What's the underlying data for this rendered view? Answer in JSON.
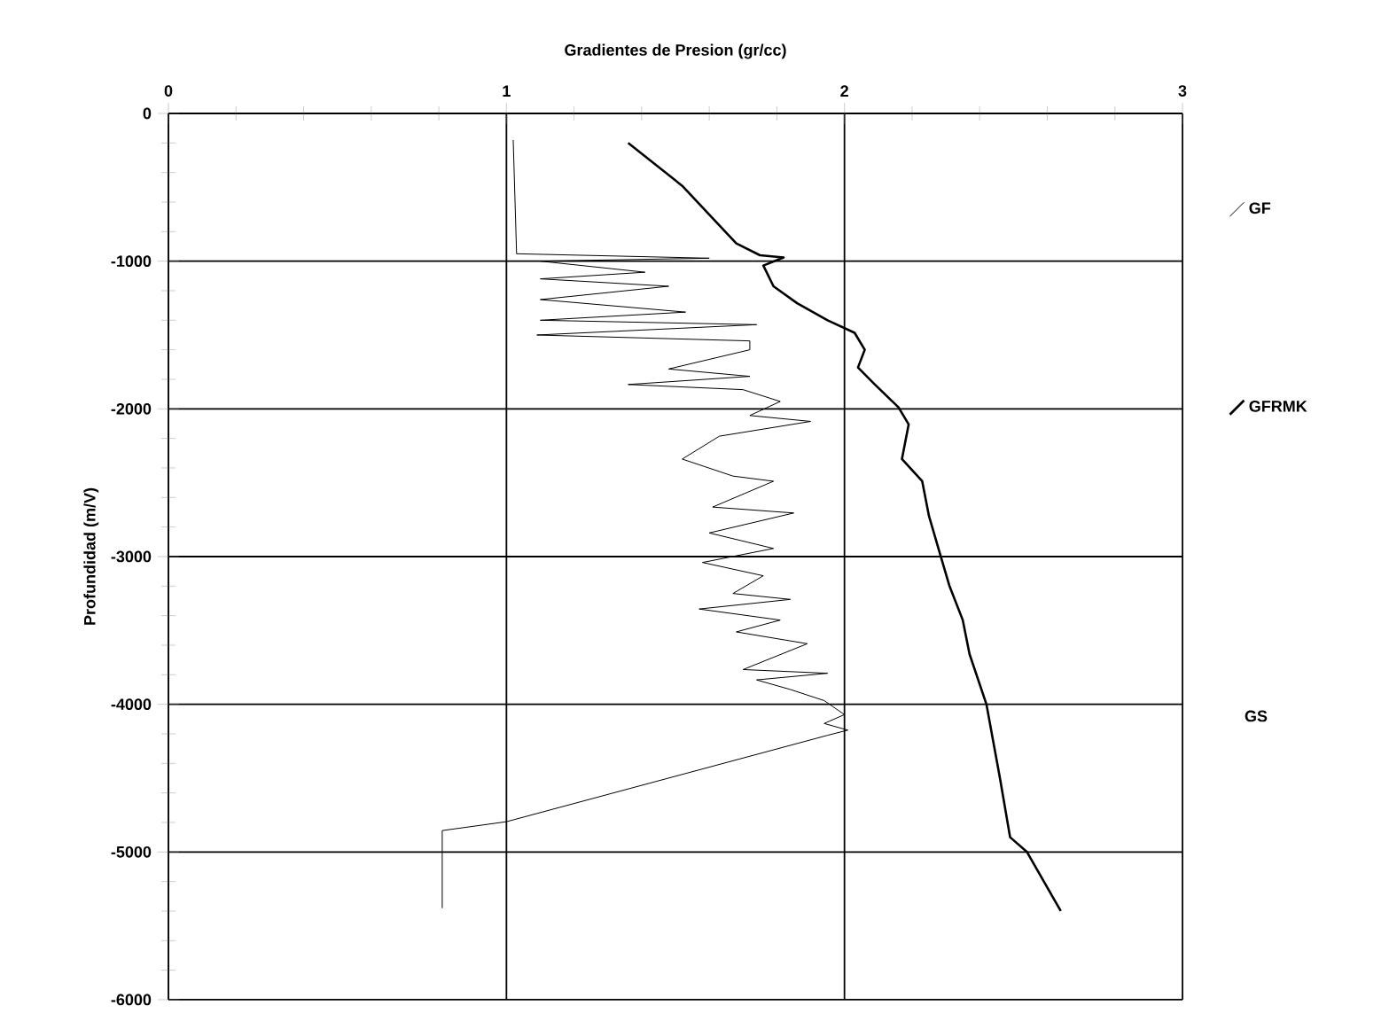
{
  "chart_data": {
    "type": "line",
    "xlabel": "Gradientes de Presion (gr/cc)",
    "ylabel": "Profundidad (m/V)",
    "xlim": [
      0,
      3
    ],
    "xticks": [
      0,
      1,
      2,
      3
    ],
    "ylim": [
      -6000,
      0
    ],
    "yticks": [
      0,
      -1000,
      -2000,
      -3000,
      -4000,
      -5000,
      -6000
    ],
    "grid": true,
    "legend": "right",
    "annotations": [
      "GS"
    ],
    "series": [
      {
        "name": "GF",
        "color": "#000000",
        "x": [
          1.02,
          1.03,
          1.6,
          1.1,
          1.41,
          1.1,
          1.48,
          1.1,
          1.53,
          1.1,
          1.74,
          1.09,
          1.72,
          1.72,
          1.48,
          1.72,
          1.36,
          1.7,
          1.81,
          1.72,
          1.9,
          1.63,
          1.52,
          1.67,
          1.79,
          1.61,
          1.85,
          1.6,
          1.79,
          1.58,
          1.76,
          1.67,
          1.84,
          1.57,
          1.81,
          1.68,
          1.89,
          1.7,
          1.95,
          1.74,
          1.84,
          1.94,
          2.0,
          1.94,
          2.01,
          1.95,
          1.0,
          0.81,
          0.81
        ],
        "values": [
          -180,
          -950,
          -980,
          -1000,
          -1075,
          -1120,
          -1170,
          -1260,
          -1345,
          -1400,
          -1430,
          -1500,
          -1540,
          -1600,
          -1730,
          -1780,
          -1835,
          -1870,
          -1950,
          -2045,
          -2085,
          -2185,
          -2340,
          -2455,
          -2490,
          -2665,
          -2705,
          -2840,
          -2945,
          -3040,
          -3130,
          -3250,
          -3290,
          -3355,
          -3430,
          -3510,
          -3590,
          -3765,
          -3790,
          -3835,
          -3900,
          -3975,
          -4070,
          -4130,
          -4175,
          -4210,
          -4795,
          -4855,
          -5380
        ]
      },
      {
        "name": "GFRMK",
        "color": "#000000",
        "x": [
          1.36,
          1.52,
          1.68,
          1.75,
          1.82,
          1.76,
          1.79,
          1.86,
          1.95,
          2.03,
          2.06,
          2.04,
          2.09,
          2.16,
          2.19,
          2.17,
          2.23,
          2.25,
          2.28,
          2.31,
          2.35,
          2.37,
          2.42,
          2.46,
          2.49,
          2.54,
          2.64
        ],
        "values": [
          -200,
          -490,
          -880,
          -960,
          -975,
          -1030,
          -1170,
          -1285,
          -1400,
          -1485,
          -1600,
          -1720,
          -1835,
          -1990,
          -2105,
          -2340,
          -2490,
          -2725,
          -2960,
          -3195,
          -3430,
          -3660,
          -4000,
          -4500,
          -4900,
          -5000,
          -5400
        ]
      }
    ]
  }
}
